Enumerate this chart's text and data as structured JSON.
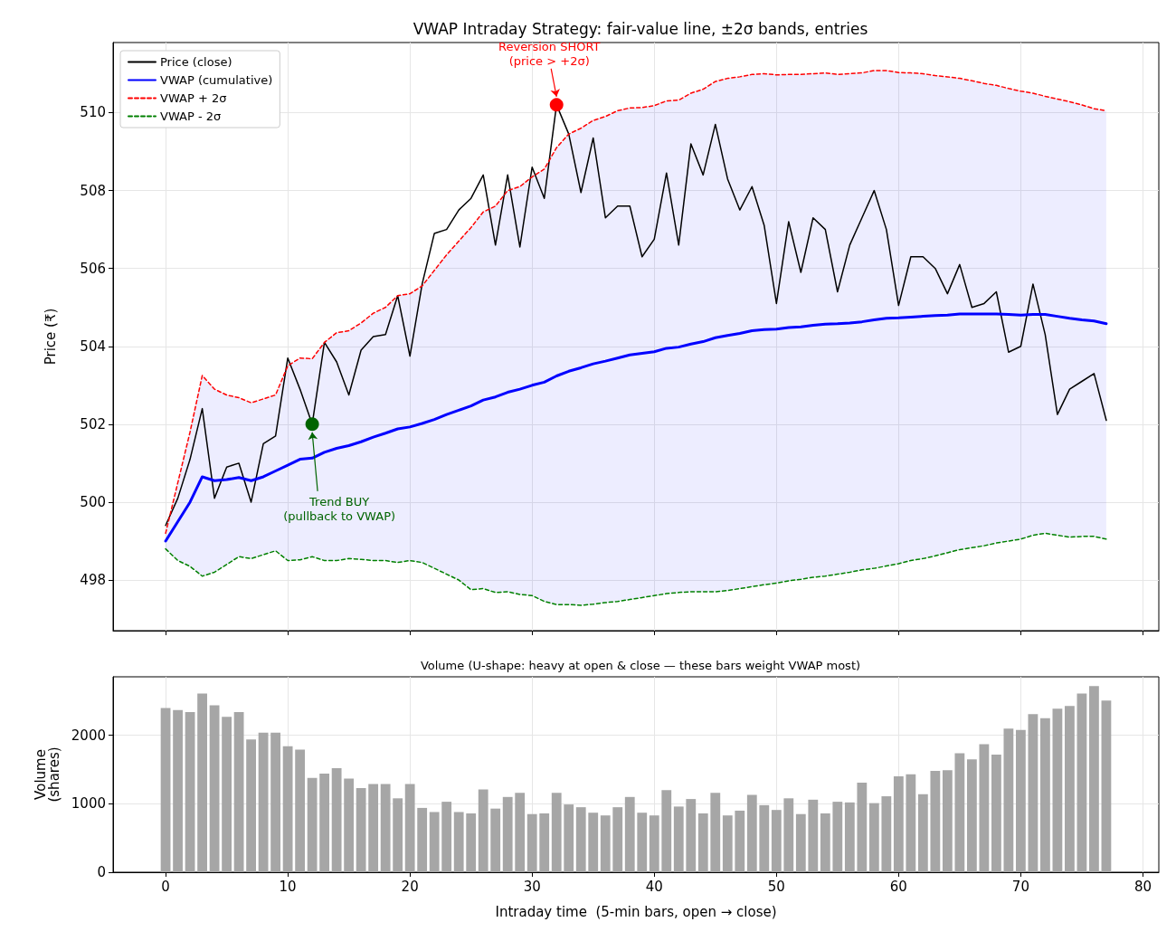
{
  "chart_data": [
    {
      "type": "line",
      "title": "VWAP Intraday Strategy: fair-value line, ±2σ bands, entries",
      "ylabel": "Price (₹)",
      "x": [
        0,
        1,
        2,
        3,
        4,
        5,
        6,
        7,
        8,
        9,
        10,
        11,
        12,
        13,
        14,
        15,
        16,
        17,
        18,
        19,
        20,
        21,
        22,
        23,
        24,
        25,
        26,
        27,
        28,
        29,
        30,
        31,
        32,
        33,
        34,
        35,
        36,
        37,
        38,
        39,
        40,
        41,
        42,
        43,
        44,
        45,
        46,
        47,
        48,
        49,
        50,
        51,
        52,
        53,
        54,
        55,
        56,
        57,
        58,
        59,
        60,
        61,
        62,
        63,
        64,
        65,
        66,
        67,
        68,
        69,
        70,
        71,
        72,
        73,
        74,
        75,
        76,
        77
      ],
      "xlim": [
        -4.3,
        81.3
      ],
      "xticks": [
        0,
        10,
        20,
        30,
        40,
        50,
        60,
        70,
        80
      ],
      "ylim": [
        496.7,
        511.8
      ],
      "yticks": [
        498,
        500,
        502,
        504,
        506,
        508,
        510
      ],
      "grid": true,
      "legend": "top left",
      "tick_labels": "y",
      "marker": "none",
      "series": [
        {
          "name": "Price (close)",
          "color": "#000000",
          "line_style": "solid",
          "values": [
            499.4,
            500.1,
            501.1,
            502.4,
            500.1,
            500.9,
            501.0,
            500.0,
            501.5,
            501.7,
            503.7,
            502.9,
            502.0,
            504.1,
            503.6,
            502.75,
            503.9,
            504.25,
            504.3,
            505.3,
            503.75,
            505.6,
            506.9,
            507.0,
            507.5,
            507.8,
            508.4,
            506.6,
            508.4,
            506.55,
            508.6,
            507.8,
            510.2,
            509.45,
            507.95,
            509.35,
            507.3,
            507.6,
            507.6,
            506.3,
            506.75,
            508.45,
            506.6,
            509.2,
            508.4,
            509.7,
            508.3,
            507.5,
            508.1,
            507.1,
            505.1,
            507.2,
            505.9,
            507.3,
            507.0,
            505.4,
            506.6,
            507.3,
            508.0,
            507.0,
            505.05,
            506.3,
            506.3,
            506.0,
            505.35,
            506.1,
            505.0,
            505.1,
            505.4,
            503.85,
            504.0,
            505.6,
            504.3,
            502.25,
            502.9,
            503.1,
            503.3,
            502.1
          ]
        },
        {
          "name": "VWAP (cumulative)",
          "color": "#0000ff",
          "line_style": "solid",
          "values": [
            499.0,
            499.5,
            500.0,
            500.65,
            500.55,
            500.58,
            500.63,
            500.55,
            500.65,
            500.8,
            500.95,
            501.1,
            501.13,
            501.28,
            501.38,
            501.45,
            501.55,
            501.67,
            501.77,
            501.88,
            501.93,
            502.02,
            502.12,
            502.25,
            502.36,
            502.47,
            502.62,
            502.7,
            502.82,
            502.9,
            503.0,
            503.08,
            503.24,
            503.36,
            503.45,
            503.55,
            503.62,
            503.7,
            503.78,
            503.82,
            503.86,
            503.95,
            503.98,
            504.06,
            504.12,
            504.22,
            504.28,
            504.33,
            504.4,
            504.43,
            504.44,
            504.48,
            504.5,
            504.54,
            504.57,
            504.58,
            504.6,
            504.63,
            504.68,
            504.72,
            504.73,
            504.75,
            504.77,
            504.79,
            504.8,
            504.83,
            504.83,
            504.83,
            504.83,
            504.82,
            504.8,
            504.82,
            504.82,
            504.77,
            504.72,
            504.68,
            504.65,
            504.58
          ],
          "upper": [
            499.2,
            500.5,
            501.8,
            503.25,
            502.9,
            502.75,
            502.68,
            502.55,
            502.65,
            502.75,
            503.5,
            503.7,
            503.68,
            504.1,
            504.35,
            504.4,
            504.6,
            504.85,
            505.0,
            505.3,
            505.35,
            505.55,
            505.95,
            506.35,
            506.7,
            507.05,
            507.45,
            507.6,
            508.0,
            508.1,
            508.35,
            508.55,
            509.1,
            509.45,
            509.6,
            509.8,
            509.9,
            510.05,
            510.12,
            510.13,
            510.18,
            510.3,
            510.32,
            510.5,
            510.6,
            510.8,
            510.88,
            510.92,
            510.98,
            511.0,
            510.97,
            510.98,
            510.98,
            511.0,
            511.02,
            510.98,
            511.0,
            511.02,
            511.08,
            511.08,
            511.03,
            511.02,
            511.0,
            510.95,
            510.92,
            510.88,
            510.82,
            510.75,
            510.7,
            510.62,
            510.55,
            510.5,
            510.42,
            510.35,
            510.28,
            510.2,
            510.1,
            510.05
          ],
          "lower": [
            498.8,
            498.5,
            498.35,
            498.1,
            498.2,
            498.4,
            498.6,
            498.55,
            498.65,
            498.75,
            498.5,
            498.52,
            498.6,
            498.5,
            498.5,
            498.55,
            498.53,
            498.5,
            498.5,
            498.45,
            498.5,
            498.45,
            498.3,
            498.15,
            498.0,
            497.75,
            497.78,
            497.68,
            497.7,
            497.63,
            497.6,
            497.45,
            497.37,
            497.37,
            497.35,
            497.38,
            497.42,
            497.45,
            497.5,
            497.55,
            497.6,
            497.65,
            497.68,
            497.7,
            497.7,
            497.7,
            497.73,
            497.78,
            497.83,
            497.88,
            497.92,
            497.98,
            498.02,
            498.07,
            498.1,
            498.15,
            498.2,
            498.26,
            498.3,
            498.36,
            498.42,
            498.5,
            498.55,
            498.62,
            498.7,
            498.78,
            498.83,
            498.88,
            498.95,
            499.0,
            499.05,
            499.15,
            499.2,
            499.15,
            499.1,
            499.12,
            499.12,
            499.05
          ]
        },
        {
          "name": "VWAP + 2σ",
          "color": "#ff0000",
          "line_style": "dashed",
          "values": [
            499.2,
            500.5,
            501.8,
            503.25,
            502.9,
            502.75,
            502.68,
            502.55,
            502.65,
            502.75,
            503.5,
            503.7,
            503.68,
            504.1,
            504.35,
            504.4,
            504.6,
            504.85,
            505.0,
            505.3,
            505.35,
            505.55,
            505.95,
            506.35,
            506.7,
            507.05,
            507.45,
            507.6,
            508.0,
            508.1,
            508.35,
            508.55,
            509.1,
            509.45,
            509.6,
            509.8,
            509.9,
            510.05,
            510.12,
            510.13,
            510.18,
            510.3,
            510.32,
            510.5,
            510.6,
            510.8,
            510.88,
            510.92,
            510.98,
            511.0,
            510.97,
            510.98,
            510.98,
            511.0,
            511.02,
            510.98,
            511.0,
            511.02,
            511.08,
            511.08,
            511.03,
            511.02,
            511.0,
            510.95,
            510.92,
            510.88,
            510.82,
            510.75,
            510.7,
            510.62,
            510.55,
            510.5,
            510.42,
            510.35,
            510.28,
            510.2,
            510.1,
            510.05
          ]
        },
        {
          "name": "VWAP - 2σ",
          "color": "#008000",
          "line_style": "dashed",
          "values": [
            498.8,
            498.5,
            498.35,
            498.1,
            498.2,
            498.4,
            498.6,
            498.55,
            498.65,
            498.75,
            498.5,
            498.52,
            498.6,
            498.5,
            498.5,
            498.55,
            498.53,
            498.5,
            498.5,
            498.45,
            498.5,
            498.45,
            498.3,
            498.15,
            498.0,
            497.75,
            497.78,
            497.68,
            497.7,
            497.63,
            497.6,
            497.45,
            497.37,
            497.37,
            497.35,
            497.38,
            497.42,
            497.45,
            497.5,
            497.55,
            497.6,
            497.65,
            497.68,
            497.7,
            497.7,
            497.7,
            497.73,
            497.78,
            497.83,
            497.88,
            497.92,
            497.98,
            498.02,
            498.07,
            498.1,
            498.15,
            498.2,
            498.26,
            498.3,
            498.36,
            498.42,
            498.5,
            498.55,
            498.62,
            498.7,
            498.78,
            498.83,
            498.88,
            498.95,
            499.0,
            499.05,
            499.15,
            499.2,
            499.15,
            499.1,
            499.12,
            499.12,
            499.05
          ]
        },
        {
          "type": "scatter",
          "marker": "circle",
          "color": "#006400",
          "x": [
            12
          ],
          "values": [
            502.0
          ]
        },
        {
          "type": "scatter",
          "marker": "circle",
          "color": "#ff0000",
          "x": [
            32
          ],
          "values": [
            510.2
          ]
        }
      ],
      "annotations": [
        {
          "text": "Trend BUY\n(pullback to VWAP)",
          "x": 12,
          "y": 502.0
        },
        {
          "text": "Reversion SHORT\n(price > +2σ)",
          "x": 32,
          "y": 510.2
        }
      ]
    },
    {
      "type": "bar",
      "title": "Volume (U-shape: heavy at open & close — these bars weight VWAP most)",
      "xlabel": "Intraday time  (5-min bars, open → close)",
      "ylabel": "Volume\n(shares)",
      "x": [
        0,
        1,
        2,
        3,
        4,
        5,
        6,
        7,
        8,
        9,
        10,
        11,
        12,
        13,
        14,
        15,
        16,
        17,
        18,
        19,
        20,
        21,
        22,
        23,
        24,
        25,
        26,
        27,
        28,
        29,
        30,
        31,
        32,
        33,
        34,
        35,
        36,
        37,
        38,
        39,
        40,
        41,
        42,
        43,
        44,
        45,
        46,
        47,
        48,
        49,
        50,
        51,
        52,
        53,
        54,
        55,
        56,
        57,
        58,
        59,
        60,
        61,
        62,
        63,
        64,
        65,
        66,
        67,
        68,
        69,
        70,
        71,
        72,
        73,
        74,
        75,
        76,
        77
      ],
      "xlim": [
        -4.3,
        81.3
      ],
      "xticks": [
        0,
        10,
        20,
        30,
        40,
        50,
        60,
        70,
        80
      ],
      "ylim": [
        0,
        2856
      ],
      "yticks": [
        0,
        1000,
        2000
      ],
      "grid": true,
      "color": "#a6a6a6",
      "values": [
        2400,
        2370,
        2340,
        2610,
        2440,
        2270,
        2340,
        1940,
        2040,
        2040,
        1840,
        1790,
        1380,
        1440,
        1520,
        1370,
        1230,
        1290,
        1290,
        1080,
        1290,
        940,
        880,
        1030,
        880,
        860,
        1210,
        930,
        1100,
        1160,
        850,
        860,
        1160,
        990,
        950,
        870,
        830,
        950,
        1100,
        870,
        830,
        1200,
        960,
        1070,
        860,
        1160,
        830,
        900,
        1130,
        980,
        910,
        1080,
        850,
        1060,
        860,
        1030,
        1020,
        1310,
        1010,
        1110,
        1400,
        1430,
        1140,
        1480,
        1490,
        1740,
        1650,
        1870,
        1720,
        2100,
        2080,
        2310,
        2250,
        2390,
        2430,
        2610,
        2720,
        2510
      ]
    }
  ]
}
